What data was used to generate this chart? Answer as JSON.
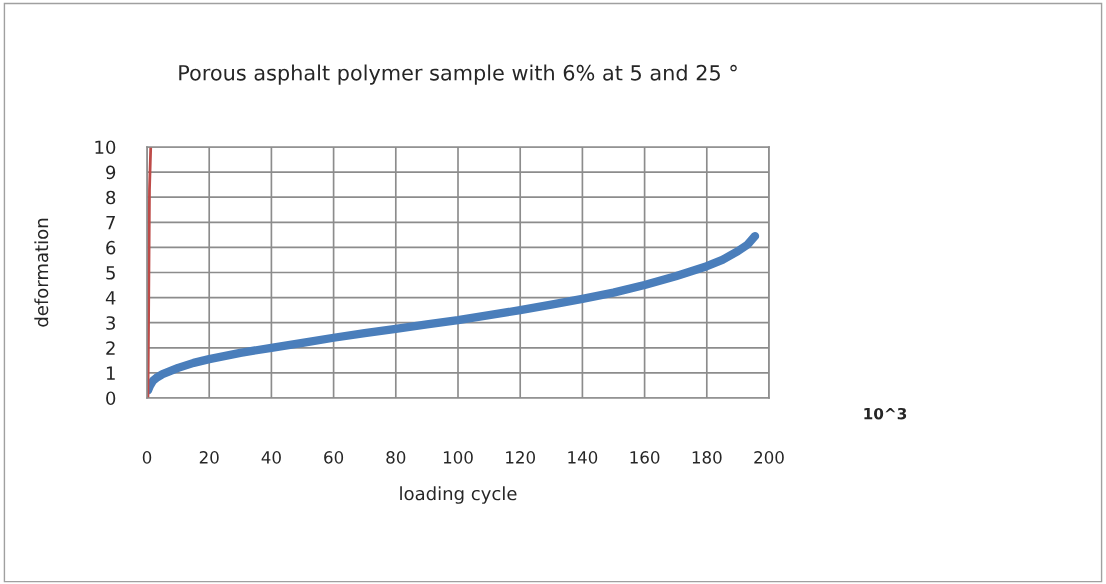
{
  "chart_data": {
    "type": "line",
    "title": "Porous asphalt polymer sample with 6% at 5 and 25 °",
    "xlabel": "loading cycle",
    "ylabel": "deformation",
    "annotations": [
      "10^3"
    ],
    "series": [
      {
        "color": "#4a7ebb",
        "x": [
          0.3,
          1,
          2,
          3,
          5,
          7,
          10,
          15,
          20,
          30,
          40,
          50,
          60,
          70,
          80,
          90,
          100,
          110,
          120,
          130,
          140,
          150,
          160,
          170,
          175,
          180,
          185,
          190,
          193,
          195.5
        ],
        "values": [
          0.3,
          0.5,
          0.7,
          0.8,
          0.95,
          1.05,
          1.2,
          1.4,
          1.55,
          1.8,
          2.0,
          2.2,
          2.4,
          2.58,
          2.75,
          2.93,
          3.1,
          3.3,
          3.5,
          3.72,
          3.95,
          4.2,
          4.5,
          4.85,
          5.05,
          5.25,
          5.5,
          5.85,
          6.1,
          6.45
        ]
      },
      {
        "color": "#be4b48",
        "x": [
          0.3,
          0.5,
          0.8,
          1.2
        ],
        "values": [
          0,
          3,
          8.3,
          10
        ]
      }
    ],
    "xlim": [
      0,
      200
    ],
    "xticks": [
      0,
      20,
      40,
      60,
      80,
      100,
      120,
      140,
      160,
      180,
      200
    ],
    "ylim": [
      0,
      10
    ],
    "yticks": [
      0,
      1,
      2,
      3,
      4,
      5,
      6,
      7,
      8,
      9,
      10
    ],
    "grid": true,
    "marker": "none",
    "line_style": "solid"
  }
}
